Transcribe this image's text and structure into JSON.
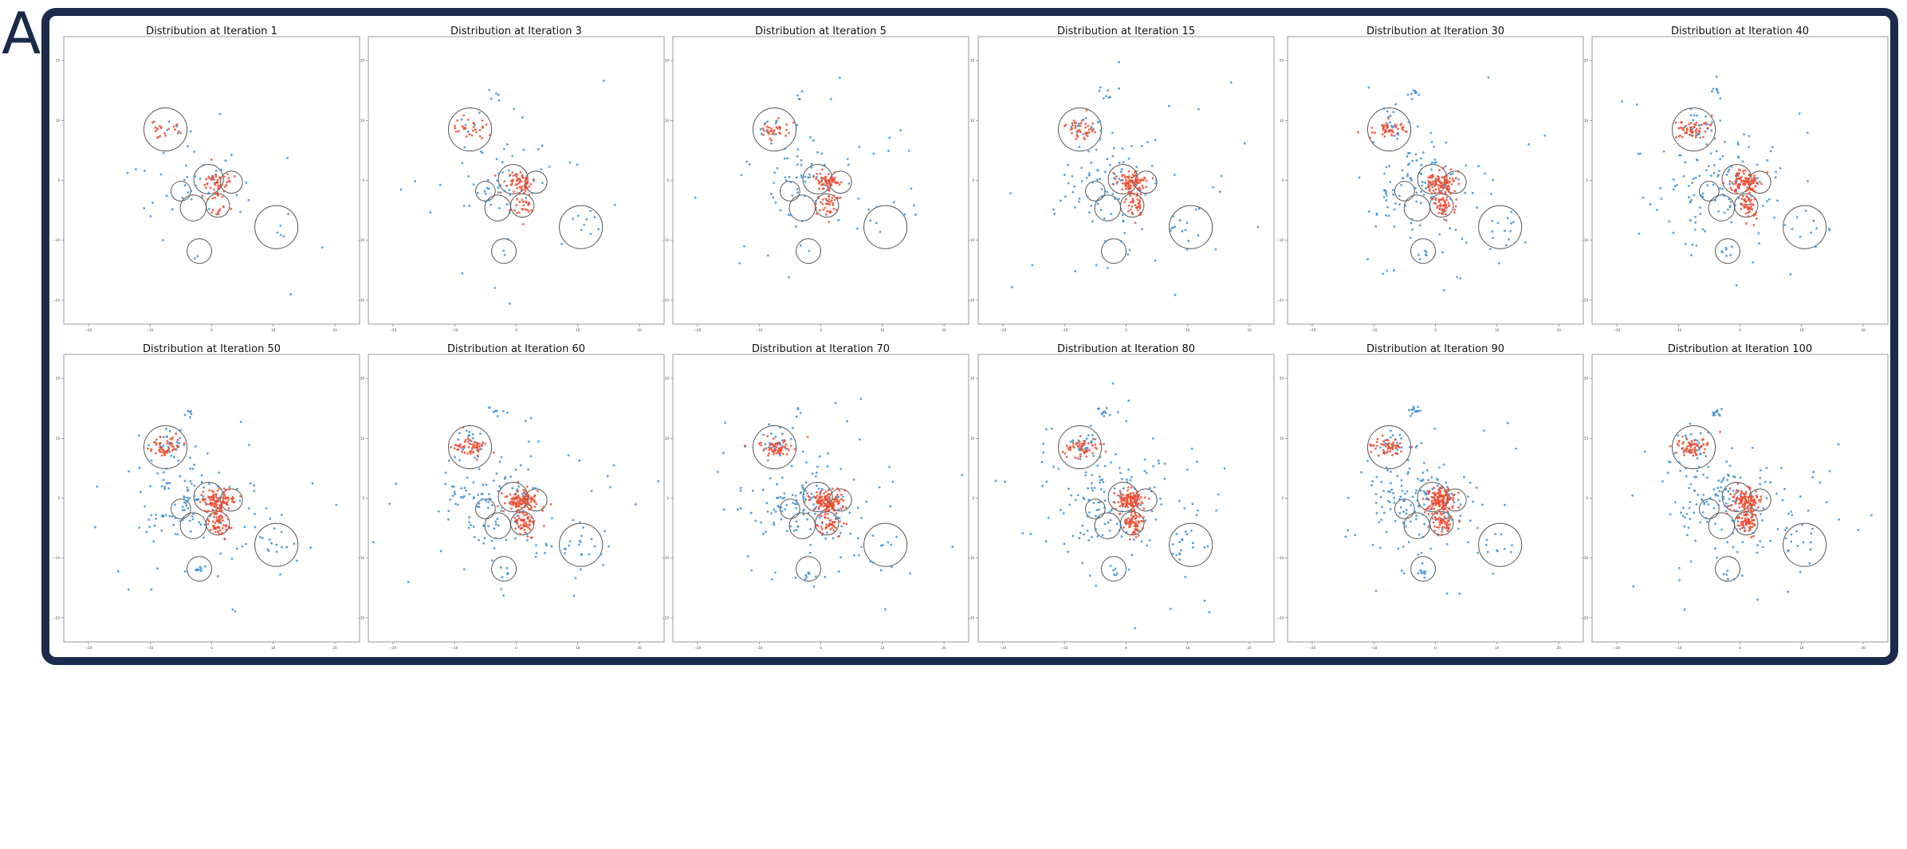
{
  "figure": {
    "panel_label": "A"
  },
  "chart_data": {
    "type": "scatter",
    "grid": false,
    "xlim": [
      -24,
      24
    ],
    "ylim": [
      -24,
      24
    ],
    "ticks": [
      -20,
      -10,
      0,
      10,
      20
    ],
    "colors": {
      "blue": "#3a8fd6",
      "red": "#ee4a2e",
      "circle": "#555555"
    },
    "circles": [
      {
        "x": -7.5,
        "y": 8.5,
        "r": 3.5
      },
      {
        "x": -0.5,
        "y": 0.2,
        "r": 2.4
      },
      {
        "x": 3.2,
        "y": -0.3,
        "r": 1.8
      },
      {
        "x": -5,
        "y": -1.8,
        "r": 1.6
      },
      {
        "x": -3,
        "y": -4.6,
        "r": 2.1
      },
      {
        "x": 1,
        "y": -4.2,
        "r": 1.9
      },
      {
        "x": 10.5,
        "y": -7.8,
        "r": 3.5
      },
      {
        "x": -2,
        "y": -11.8,
        "r": 2
      }
    ],
    "clusters": {
      "red": [
        {
          "x": -7.5,
          "y": 8.5,
          "sx": 1.4,
          "sy": 0.8
        },
        {
          "x": 0.8,
          "y": -0.3,
          "sx": 1.3,
          "sy": 0.9
        },
        {
          "x": 1.3,
          "y": -4,
          "sx": 0.9,
          "sy": 1.1
        }
      ],
      "blue": [
        {
          "x": -3,
          "y": -0.5,
          "sx": 4,
          "sy": 3.5
        },
        {
          "x": -7,
          "y": 9,
          "sx": 1.4,
          "sy": 1.2
        },
        {
          "x": 10.5,
          "y": -7.8,
          "sx": 1.7,
          "sy": 1.4
        },
        {
          "x": -3.5,
          "y": 14.5,
          "sx": 0.6,
          "sy": 0.5
        },
        {
          "x": -2,
          "y": -12.2,
          "sx": 0.5,
          "sy": 0.7
        },
        {
          "x": 0,
          "y": -2,
          "sx": 9,
          "sy": 8
        }
      ]
    },
    "panels": [
      {
        "title": "Distribution at Iteration 1",
        "iteration": 1
      },
      {
        "title": "Distribution at Iteration 3",
        "iteration": 3
      },
      {
        "title": "Distribution at Iteration 5",
        "iteration": 5
      },
      {
        "title": "Distribution at Iteration 15",
        "iteration": 15
      },
      {
        "title": "Distribution at Iteration 30",
        "iteration": 30
      },
      {
        "title": "Distribution at Iteration 40",
        "iteration": 40
      },
      {
        "title": "Distribution at Iteration 50",
        "iteration": 50
      },
      {
        "title": "Distribution at Iteration 60",
        "iteration": 60
      },
      {
        "title": "Distribution at Iteration 70",
        "iteration": 70
      },
      {
        "title": "Distribution at Iteration 80",
        "iteration": 80
      },
      {
        "title": "Distribution at Iteration 90",
        "iteration": 90
      },
      {
        "title": "Distribution at Iteration 100",
        "iteration": 100
      }
    ]
  }
}
